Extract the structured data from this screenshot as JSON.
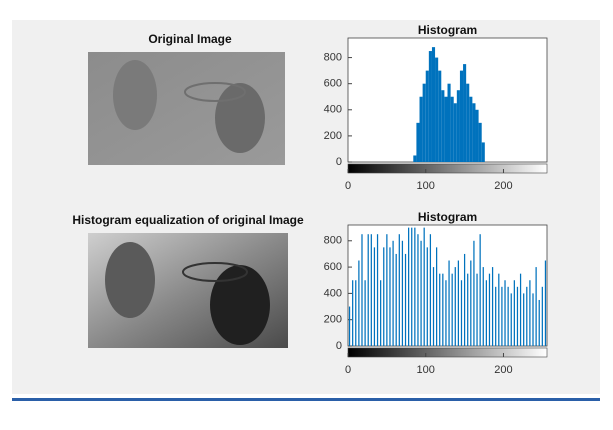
{
  "images": [
    {
      "title": "Original Image"
    },
    {
      "title": "Histogram equalization of original Image"
    }
  ],
  "chart_data": [
    {
      "type": "histogram",
      "title": "Histogram",
      "color": "#0072bd",
      "bins": [
        0,
        4,
        8,
        12,
        16,
        20,
        24,
        28,
        32,
        36,
        40,
        44,
        48,
        52,
        56,
        60,
        64,
        68,
        72,
        76,
        80,
        84,
        88,
        92,
        96,
        100,
        104,
        108,
        112,
        116,
        120,
        124,
        128,
        132,
        136,
        140,
        144,
        148,
        152,
        156,
        160,
        164,
        168,
        172,
        176,
        180,
        184,
        188,
        192,
        196,
        200,
        204,
        208,
        212,
        216,
        220,
        224,
        228,
        232,
        236,
        240,
        244,
        248,
        252,
        256
      ],
      "values": [
        0,
        0,
        0,
        0,
        0,
        0,
        0,
        0,
        0,
        0,
        0,
        0,
        0,
        0,
        0,
        0,
        0,
        0,
        0,
        0,
        0,
        50,
        300,
        500,
        600,
        700,
        850,
        880,
        800,
        700,
        550,
        500,
        600,
        500,
        450,
        550,
        700,
        750,
        600,
        500,
        450,
        400,
        300,
        150,
        0,
        0,
        0,
        0,
        0,
        0,
        0,
        0,
        0,
        0,
        0,
        0,
        0,
        0,
        0,
        0,
        0,
        0,
        0,
        0
      ],
      "xlim": [
        0,
        256
      ],
      "xticks": [
        0,
        100,
        200
      ],
      "ylim": [
        0,
        950
      ],
      "yticks": [
        0,
        200,
        400,
        600,
        800
      ]
    },
    {
      "type": "histogram",
      "title": "Histogram",
      "color": "#0072bd",
      "bins": [
        0,
        4,
        8,
        12,
        16,
        20,
        24,
        28,
        32,
        36,
        40,
        44,
        48,
        52,
        56,
        60,
        64,
        68,
        72,
        76,
        80,
        84,
        88,
        92,
        96,
        100,
        104,
        108,
        112,
        116,
        120,
        124,
        128,
        132,
        136,
        140,
        144,
        148,
        152,
        156,
        160,
        164,
        168,
        172,
        176,
        180,
        184,
        188,
        192,
        196,
        200,
        204,
        208,
        212,
        216,
        220,
        224,
        228,
        232,
        236,
        240,
        244,
        248,
        252,
        256
      ],
      "values": [
        300,
        500,
        500,
        650,
        850,
        500,
        850,
        850,
        750,
        850,
        500,
        750,
        850,
        750,
        800,
        700,
        850,
        800,
        700,
        900,
        900,
        900,
        850,
        800,
        900,
        750,
        850,
        600,
        750,
        550,
        550,
        500,
        650,
        550,
        600,
        650,
        500,
        700,
        550,
        650,
        800,
        550,
        850,
        600,
        500,
        550,
        600,
        450,
        550,
        450,
        500,
        450,
        400,
        500,
        450,
        550,
        400,
        450,
        500,
        400,
        600,
        350,
        450,
        650
      ],
      "xlim": [
        0,
        256
      ],
      "xticks": [
        0,
        100,
        200
      ],
      "ylim": [
        0,
        920
      ],
      "yticks": [
        0,
        200,
        400,
        600,
        800
      ]
    }
  ]
}
